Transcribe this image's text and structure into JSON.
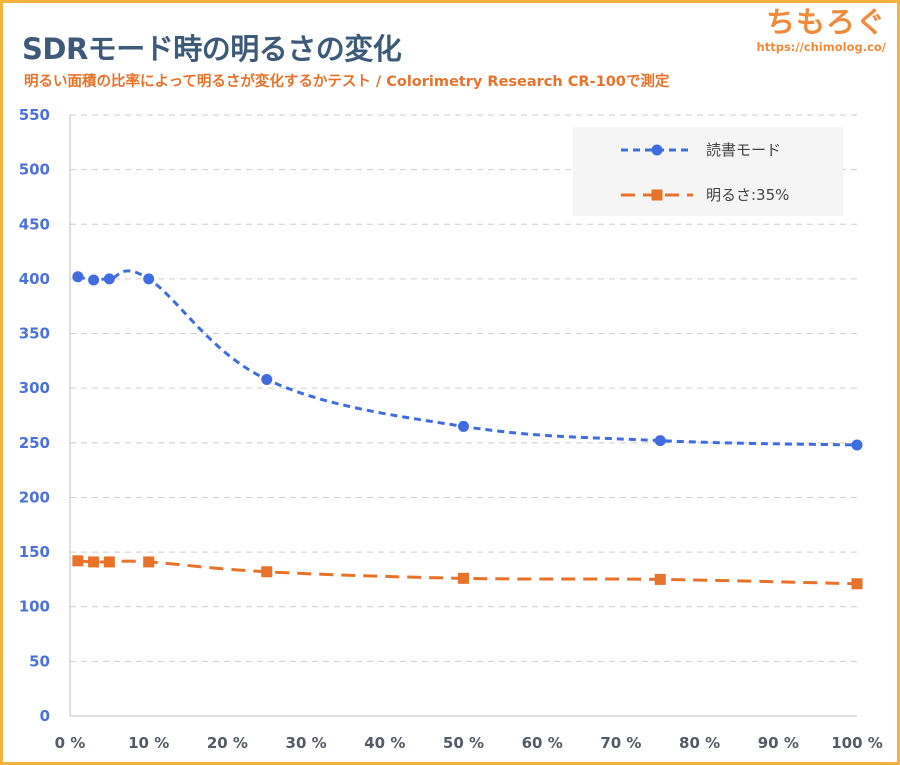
{
  "header": {
    "title": "SDRモード時の明るさの変化",
    "subtitle": "明るい面積の比率によって明るさが変化するかテスト / Colorimetry Research CR-100で測定"
  },
  "brand": {
    "name": "ちもろぐ",
    "url": "https://chimolog.co/"
  },
  "chart_data": {
    "type": "line",
    "x_tick_labels": [
      "0 %",
      "10 %",
      "20 %",
      "30 %",
      "40 %",
      "50 %",
      "60 %",
      "70 %",
      "80 %",
      "90 %",
      "100 %"
    ],
    "y_tick_labels": [
      "0",
      "50",
      "100",
      "150",
      "200",
      "250",
      "300",
      "350",
      "400",
      "450",
      "500",
      "550"
    ],
    "xlim": [
      0,
      100
    ],
    "ylim": [
      0,
      550
    ],
    "y_step": 50,
    "grid": "horizontal-dashed",
    "legend_position": "top-right",
    "x": [
      1,
      3,
      5,
      10,
      25,
      50,
      75,
      100
    ],
    "series": [
      {
        "name": "読書モード",
        "values": [
          402,
          399,
          400,
          400,
          308,
          265,
          252,
          248
        ],
        "color": "#3f6de0",
        "marker": "circle"
      },
      {
        "name": "明るさ:35%",
        "values": [
          142,
          141,
          141,
          141,
          132,
          126,
          125,
          121
        ],
        "color": "#e8722a",
        "marker": "square"
      }
    ]
  }
}
